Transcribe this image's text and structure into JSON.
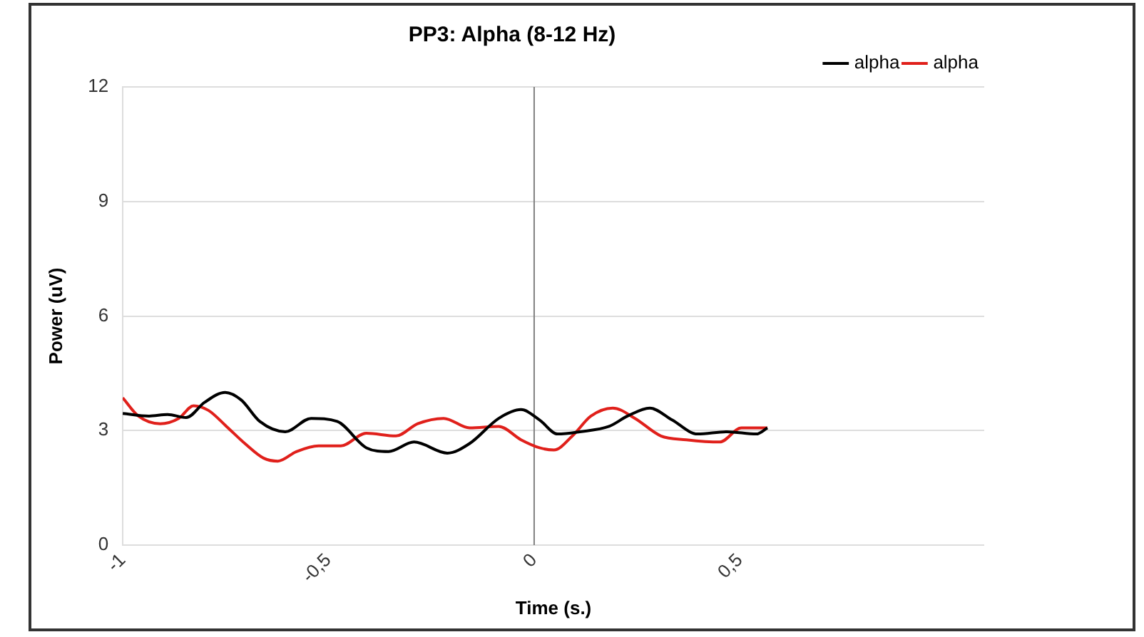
{
  "chart_data": {
    "type": "line",
    "title": "PP3: Alpha (8-12 Hz)",
    "xlabel": "Time (s.)",
    "ylabel": "Power (uV)",
    "xlim": [
      -1,
      1.094
    ],
    "xticks": [
      -1,
      {
        "value": -0.5,
        "label": "-0,5"
      },
      0,
      {
        "value": 0.5,
        "label": "0,5"
      }
    ],
    "ylim": [
      0,
      12
    ],
    "yticks": [
      0,
      3,
      6,
      9,
      12
    ],
    "grid": "y",
    "legend": "top right",
    "marker": "none",
    "line_style": "solid",
    "ref_lines": [
      {
        "axis": "x",
        "value": 0,
        "color": "#808080"
      }
    ],
    "series": [
      {
        "name": "alpha",
        "color": "#000000",
        "x": [
          -1,
          -0.936,
          -0.891,
          -0.846,
          -0.801,
          -0.751,
          -0.712,
          -0.667,
          -0.605,
          -0.542,
          -0.479,
          -0.408,
          -0.354,
          -0.292,
          -0.211,
          -0.157,
          -0.086,
          -0.032,
          0.013,
          0.057,
          0.111,
          0.182,
          0.227,
          0.281,
          0.335,
          0.397,
          0.469,
          0.54,
          0.567
        ],
        "values": [
          3.45,
          3.38,
          3.42,
          3.34,
          3.74,
          4.0,
          3.8,
          3.24,
          2.97,
          3.32,
          3.24,
          2.55,
          2.45,
          2.7,
          2.41,
          2.66,
          3.32,
          3.55,
          3.28,
          2.91,
          2.97,
          3.11,
          3.38,
          3.59,
          3.28,
          2.91,
          2.97,
          2.91,
          3.07
        ]
      },
      {
        "name": "alpha",
        "color": "#e0201b",
        "x": [
          -1,
          -0.962,
          -0.909,
          -0.864,
          -0.828,
          -0.792,
          -0.748,
          -0.703,
          -0.658,
          -0.623,
          -0.578,
          -0.524,
          -0.47,
          -0.408,
          -0.336,
          -0.283,
          -0.22,
          -0.157,
          -0.086,
          -0.032,
          0.013,
          0.048,
          0.093,
          0.138,
          0.191,
          0.245,
          0.308,
          0.37,
          0.451,
          0.504,
          0.567
        ],
        "values": [
          3.86,
          3.38,
          3.18,
          3.32,
          3.65,
          3.53,
          3.11,
          2.66,
          2.28,
          2.2,
          2.45,
          2.6,
          2.6,
          2.93,
          2.86,
          3.18,
          3.32,
          3.07,
          3.11,
          2.76,
          2.55,
          2.49,
          2.86,
          3.38,
          3.59,
          3.32,
          2.86,
          2.76,
          2.7,
          3.07,
          3.07
        ]
      }
    ]
  }
}
